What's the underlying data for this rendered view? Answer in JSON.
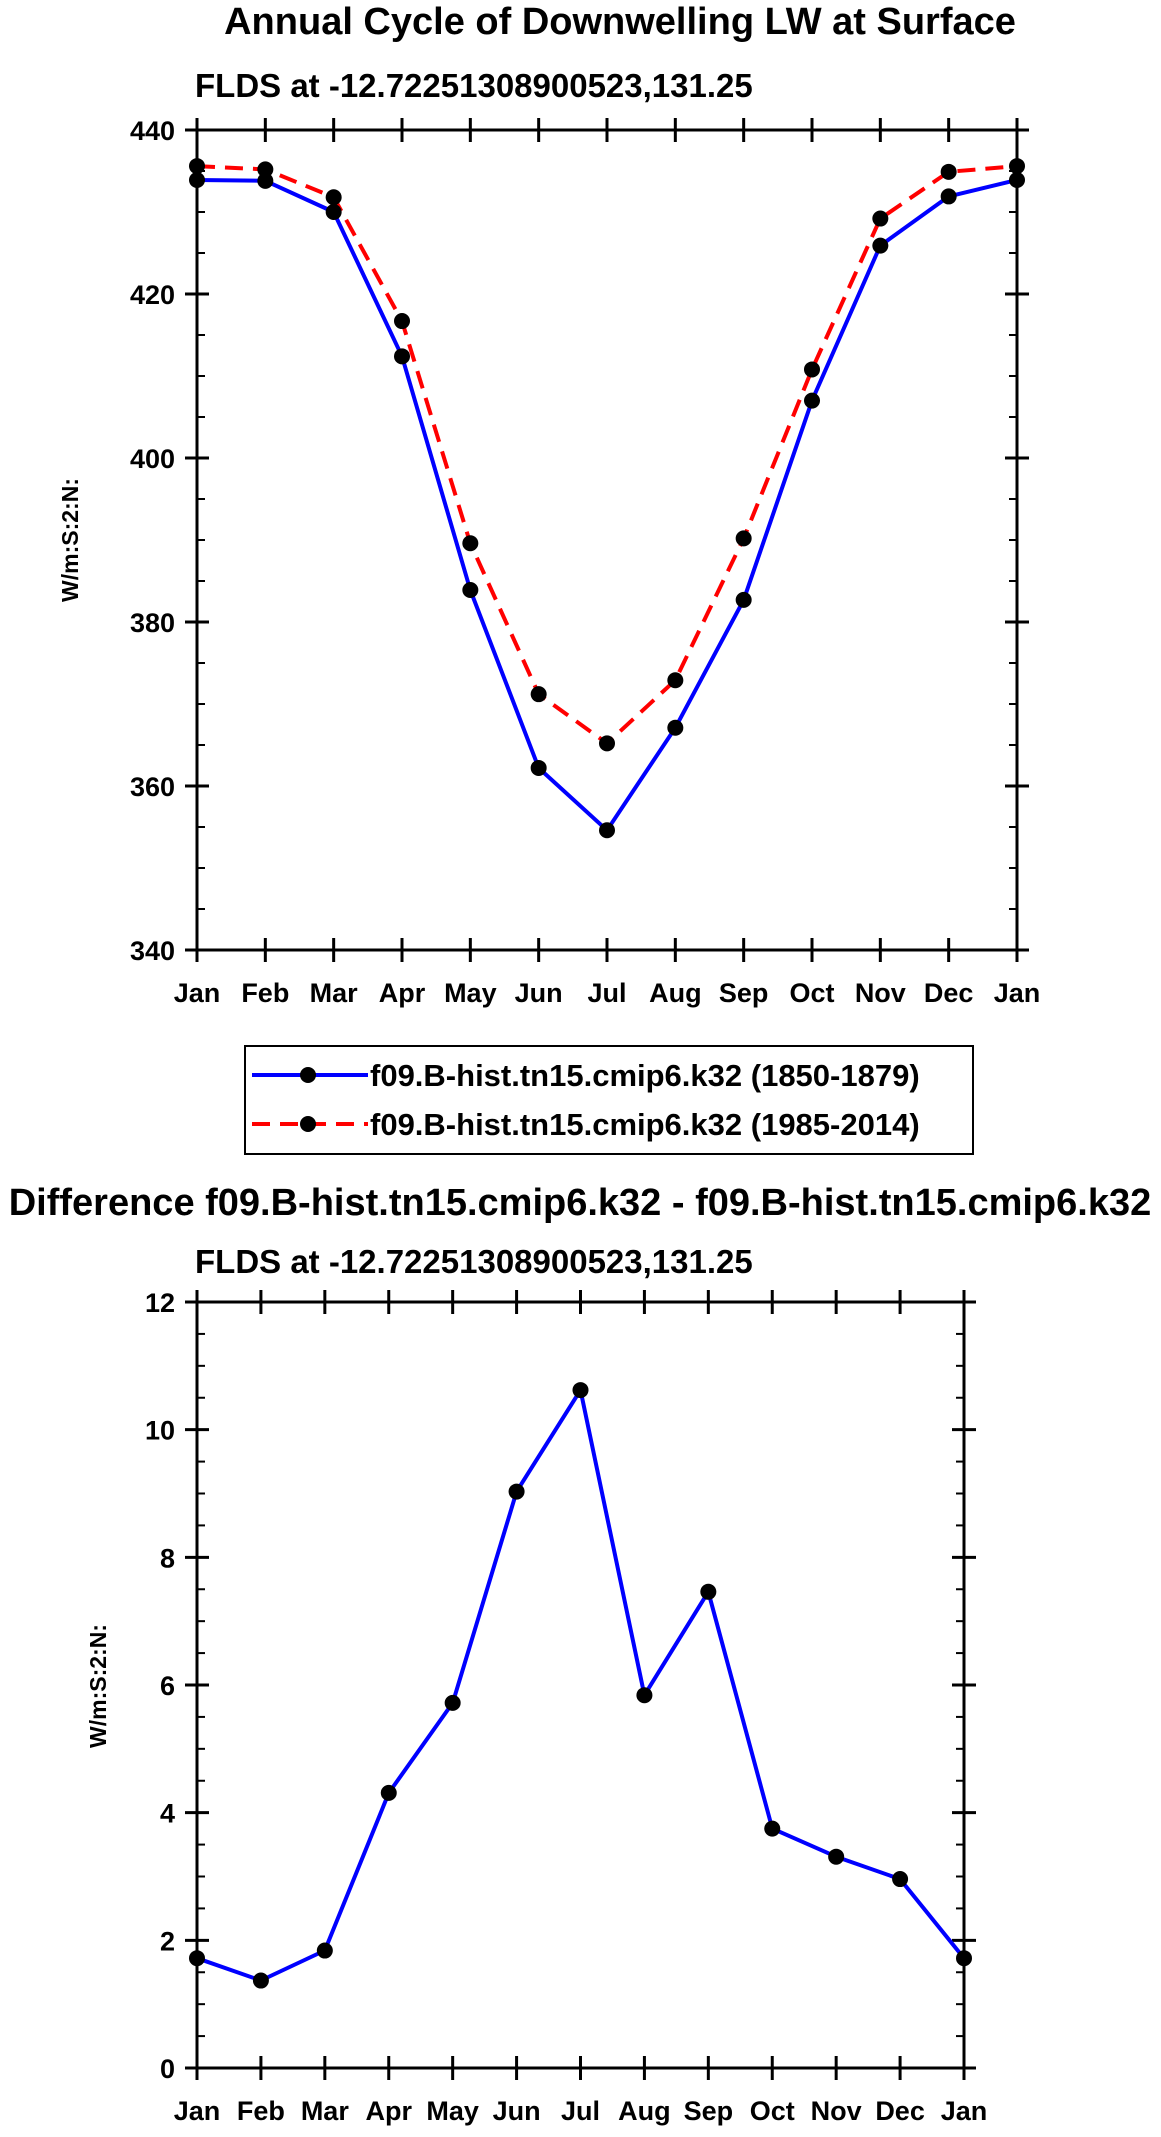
{
  "chart_data": [
    {
      "type": "line",
      "title": "Annual Cycle of Downwelling LW at Surface",
      "subtitle": "FLDS at -12.72251308900523,131.25",
      "ylabel": "W/m:S:2:N:",
      "xlabel": "",
      "categories": [
        "Jan",
        "Feb",
        "Mar",
        "Apr",
        "May",
        "Jun",
        "Jul",
        "Aug",
        "Sep",
        "Oct",
        "Nov",
        "Dec",
        "Jan"
      ],
      "ylim": [
        340,
        440
      ],
      "yticks": [
        340,
        360,
        380,
        400,
        420,
        440
      ],
      "series": [
        {
          "name": "f09.B-hist.tn15.cmip6.k32 (1850-1879)",
          "color": "#0000ff",
          "dash": "solid",
          "values": [
            433.9,
            433.8,
            430.0,
            412.4,
            383.9,
            362.2,
            354.6,
            367.1,
            382.7,
            407.0,
            425.9,
            431.9,
            433.9
          ]
        },
        {
          "name": "f09.B-hist.tn15.cmip6.k32 (1985-2014)",
          "color": "#ff0000",
          "dash": "dashed",
          "values": [
            435.6,
            435.2,
            431.8,
            416.7,
            389.6,
            371.2,
            365.2,
            372.9,
            390.2,
            410.8,
            429.2,
            434.9,
            435.6
          ]
        }
      ],
      "legend": "bottom"
    },
    {
      "type": "line",
      "title": "Difference f09.B-hist.tn15.cmip6.k32 - f09.B-hist.tn15.cmip6.k32",
      "subtitle": "FLDS at -12.72251308900523,131.25",
      "ylabel": "W/m:S:2:N:",
      "xlabel": "",
      "categories": [
        "Jan",
        "Feb",
        "Mar",
        "Apr",
        "May",
        "Jun",
        "Jul",
        "Aug",
        "Sep",
        "Oct",
        "Nov",
        "Dec",
        "Jan"
      ],
      "ylim": [
        0,
        12
      ],
      "yticks": [
        0,
        2,
        4,
        6,
        8,
        10,
        12
      ],
      "series": [
        {
          "name": "difference",
          "color": "#0000ff",
          "dash": "solid",
          "values": [
            1.72,
            1.37,
            1.84,
            4.31,
            5.72,
            9.03,
            10.62,
            5.84,
            7.46,
            3.75,
            3.31,
            2.96,
            1.72
          ]
        }
      ]
    }
  ]
}
